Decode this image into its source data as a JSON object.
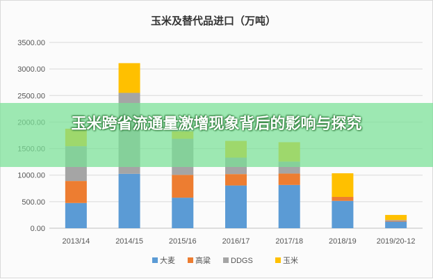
{
  "overlay": {
    "title": "玉米跨省流通量激增现象背后的影响与探究"
  },
  "chart_data": {
    "type": "bar",
    "stacked": true,
    "title": "玉米及替代品进口（万吨）",
    "categories": [
      "2013/14",
      "2014/15",
      "2015/16",
      "2016/17",
      "2017/18",
      "2018/19",
      "2019/20-12"
    ],
    "ylim": [
      0,
      3500
    ],
    "yticks": [
      0,
      500,
      1000,
      1500,
      2000,
      2500,
      3000,
      3500
    ],
    "ytick_labels": [
      "0.00",
      "500.00",
      "1000.00",
      "1500.00",
      "2000.00",
      "2500.00",
      "3000.00",
      "3500.00"
    ],
    "grid": true,
    "legend_position": "bottom",
    "series": [
      {
        "name": "大麦",
        "color": "#5b9bd5",
        "values": [
          475,
          1025,
          575,
          805,
          815,
          515,
          125
        ]
      },
      {
        "name": "高粱",
        "color": "#ed7d31",
        "values": [
          415,
          0,
          430,
          215,
          215,
          75,
          15
        ]
      },
      {
        "name": "DDGS",
        "color": "#a5a5a5",
        "values": [
          655,
          1525,
          680,
          310,
          225,
          0,
          15
        ]
      },
      {
        "name": "玉米",
        "color": "#ffc000",
        "values": [
          330,
          560,
          140,
          315,
          365,
          445,
          95
        ]
      }
    ]
  }
}
